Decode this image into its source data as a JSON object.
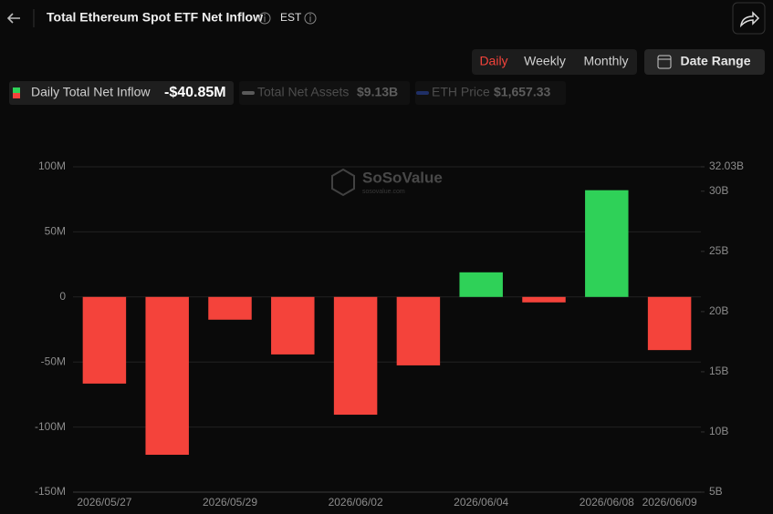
{
  "header": {
    "timezone": "EST",
    "tabs": [
      "Daily",
      "Weekly",
      "Monthly"
    ],
    "active_tab": 0,
    "date_range": "Date Range"
  },
  "chart_data": {
    "type": "bar",
    "title": "Total Ethereum Spot ETF Net Inflow",
    "categories": [
      "2026/05/27",
      null,
      "2026/05/29",
      null,
      "2026/06/02",
      null,
      "2026/06/04",
      null,
      "2026/06/08",
      "2026/06/09"
    ],
    "series": [
      {
        "name": "Daily Total Net Inflow",
        "current": "-$40.85M",
        "positive_color": "#2fd158",
        "negative_color": "#f4433b",
        "values": [
          -66.6,
          -121.3,
          -17.5,
          -44.2,
          -90.5,
          -52.6,
          18.9,
          -4.2,
          82.0,
          -40.85
        ]
      },
      {
        "name": "Total Net Assets",
        "current": "$9.13B",
        "color": "#5a5a5a",
        "axis": "y2",
        "hidden": true
      },
      {
        "name": "ETH Price",
        "current": "$1,657.33",
        "color": "#1f2f66",
        "axis": "y2",
        "hidden": true
      }
    ],
    "ylim": [
      -150,
      100
    ],
    "yticks": [
      {
        "value": 100,
        "label": "100M"
      },
      {
        "value": 50,
        "label": "50M"
      },
      0,
      {
        "value": -50,
        "label": "-50M"
      },
      {
        "value": -100,
        "label": "-100M"
      },
      {
        "value": -150,
        "label": "-150M"
      }
    ],
    "y2lim": [
      5,
      32.03
    ],
    "y2ticks": [
      {
        "value": 32.03,
        "label": "32.03B"
      },
      {
        "value": 30,
        "label": "30B"
      },
      {
        "value": 25,
        "label": "25B"
      },
      {
        "value": 20,
        "label": "20B"
      },
      {
        "value": 15,
        "label": "15B"
      },
      {
        "value": 10,
        "label": "10B"
      },
      {
        "value": 5,
        "label": "5B"
      }
    ],
    "grid": true,
    "watermark": "SoSoValue",
    "watermark_sub": "sosovalue.com"
  }
}
